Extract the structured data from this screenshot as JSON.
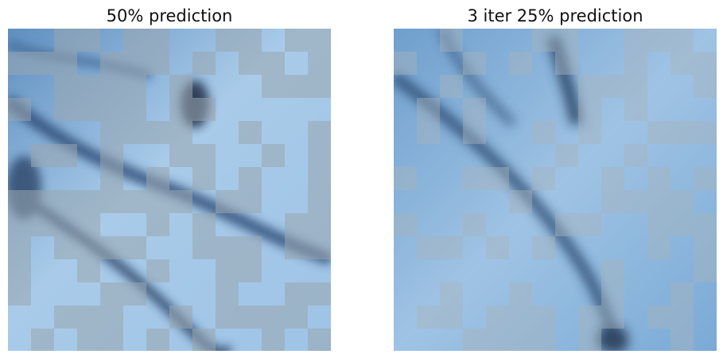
{
  "panels": [
    {
      "title": "50% prediction"
    },
    {
      "title": "3 iter 25% prediction"
    }
  ],
  "colors": {
    "background": "#ffffff",
    "sky_light": "#a9cbe9",
    "sky_mid": "#6f9fcd",
    "sky_dark": "#1e3556",
    "patch_gray": "#9aa7b0"
  }
}
